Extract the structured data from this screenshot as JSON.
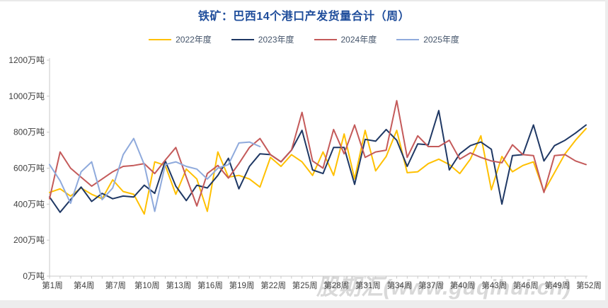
{
  "title": "铁矿：巴西14个港口产发货量合计（周）",
  "title_color": "#1F4D9B",
  "watermark": "股期汇(www.guqihui.cn)",
  "colors": {
    "axis": "#C9C9C9",
    "tick_label": "#404040",
    "legend_text": "#44546A",
    "watermark_gray": "#d9d9d9",
    "background": "#ffffff"
  },
  "chart_data": {
    "type": "line",
    "title": "铁矿：巴西14个港口产发货量合计（周）",
    "xlabel": "",
    "ylabel": "万吨",
    "ylim": [
      0,
      1200
    ],
    "ytick_step": 200,
    "ytick_labels": [
      "0万吨",
      "200万吨",
      "400万吨",
      "600万吨",
      "800万吨",
      "1000万吨",
      "1200万吨"
    ],
    "x_unit": "周",
    "x_range": [
      1,
      52
    ],
    "xtick_weeks": [
      1,
      4,
      7,
      10,
      13,
      16,
      19,
      22,
      25,
      28,
      31,
      34,
      37,
      40,
      43,
      46,
      49,
      52
    ],
    "xtick_labels": [
      "第1周",
      "第4周",
      "第7周",
      "第10周",
      "第13周",
      "第16周",
      "第19周",
      "第22周",
      "第25周",
      "第28周",
      "第31周",
      "第34周",
      "第37周",
      "第40周",
      "第43周",
      "第46周",
      "第49周",
      "第52周"
    ],
    "grid": false,
    "legend_position": "top",
    "series": [
      {
        "name": "2022年度",
        "color": "#FFC000",
        "start_week": 1,
        "values": [
          465,
          485,
          445,
          490,
          455,
          430,
          535,
          470,
          455,
          345,
          635,
          615,
          455,
          595,
          540,
          360,
          690,
          550,
          560,
          540,
          495,
          660,
          610,
          675,
          635,
          560,
          690,
          560,
          790,
          540,
          810,
          585,
          665,
          810,
          575,
          580,
          625,
          650,
          620,
          570,
          650,
          780,
          480,
          665,
          580,
          615,
          635,
          470,
          575,
          680,
          755,
          820
        ]
      },
      {
        "name": "2023年度",
        "color": "#1F3864",
        "start_week": 1,
        "values": [
          440,
          355,
          425,
          495,
          415,
          460,
          430,
          445,
          440,
          505,
          460,
          640,
          500,
          420,
          505,
          490,
          560,
          655,
          485,
          610,
          680,
          675,
          635,
          700,
          810,
          590,
          570,
          715,
          715,
          510,
          760,
          750,
          815,
          755,
          610,
          735,
          730,
          920,
          590,
          680,
          725,
          745,
          705,
          400,
          670,
          675,
          840,
          640,
          725,
          755,
          795,
          840
        ]
      },
      {
        "name": "2024年度",
        "color": "#C45A5A",
        "start_week": 1,
        "values": [
          430,
          690,
          600,
          550,
          500,
          540,
          580,
          610,
          615,
          625,
          570,
          645,
          715,
          550,
          390,
          570,
          615,
          545,
          625,
          715,
          765,
          675,
          635,
          700,
          910,
          640,
          600,
          815,
          680,
          840,
          660,
          690,
          700,
          975,
          660,
          780,
          720,
          720,
          755,
          650,
          685,
          660,
          640,
          630,
          730,
          675,
          670,
          465,
          670,
          675,
          640,
          620
        ]
      },
      {
        "name": "2025年度",
        "color": "#8FAADC",
        "start_week": 1,
        "values": [
          620,
          530,
          405,
          580,
          635,
          425,
          490,
          675,
          765,
          620,
          360,
          620,
          635,
          610,
          595,
          540,
          600,
          620,
          740,
          745,
          720
        ]
      }
    ]
  }
}
